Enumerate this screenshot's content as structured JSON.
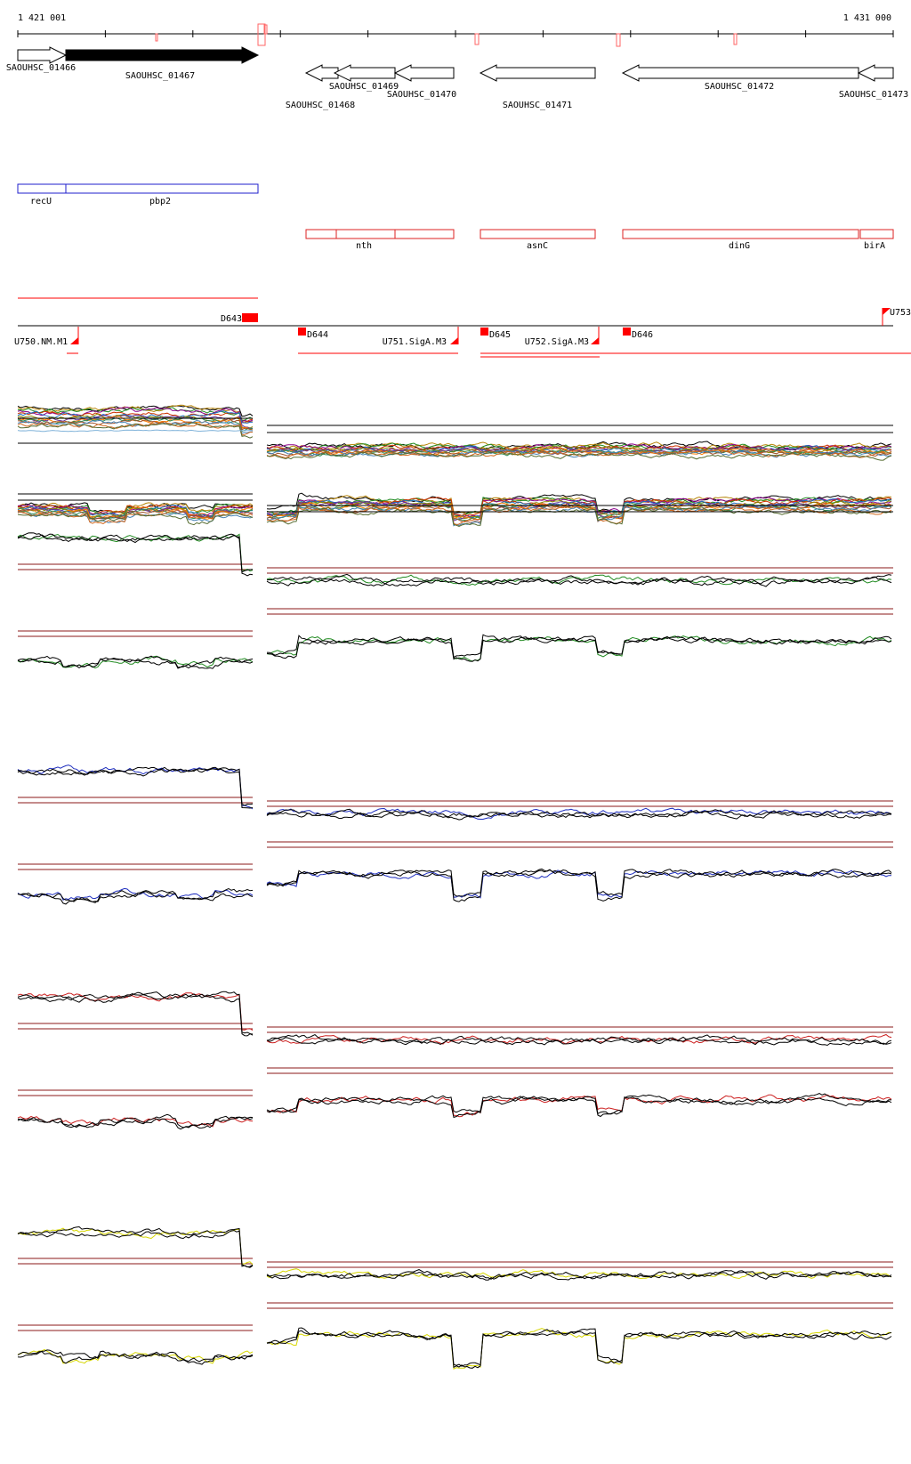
{
  "coordinates": {
    "start_label": "1 421 001",
    "end_label": "1 431 000"
  },
  "genes": [
    {
      "id": "SAOUHSC_01466",
      "strand": "+",
      "filled": false
    },
    {
      "id": "SAOUHSC_01467",
      "strand": "+",
      "filled": true
    },
    {
      "id": "SAOUHSC_01468",
      "strand": "-",
      "filled": false
    },
    {
      "id": "SAOUHSC_01469",
      "strand": "-",
      "filled": false
    },
    {
      "id": "SAOUHSC_01470",
      "strand": "-",
      "filled": false
    },
    {
      "id": "SAOUHSC_01471",
      "strand": "-",
      "filled": false
    },
    {
      "id": "SAOUHSC_01472",
      "strand": "-",
      "filled": false
    },
    {
      "id": "SAOUHSC_01473",
      "strand": "-",
      "filled": false
    }
  ],
  "gene_names_plus": [
    {
      "name": "recU"
    },
    {
      "name": "pbp2"
    }
  ],
  "gene_names_minus": [
    {
      "name": "nth"
    },
    {
      "name": "asnC"
    },
    {
      "name": "dinG"
    },
    {
      "name": "birA"
    }
  ],
  "features": [
    {
      "label": "U750.NM.M1"
    },
    {
      "label": "D644"
    },
    {
      "label": "U751.SigA.M3"
    },
    {
      "label": "D645"
    },
    {
      "label": "U752.SigA.M3"
    },
    {
      "label": "D646"
    },
    {
      "label": "U753"
    },
    {
      "label": "D643"
    }
  ],
  "colors": {
    "gene_outline": "#000000",
    "plus_track": "#1f1fcc",
    "minus_track": "#dd2222",
    "feature": "#ff0000",
    "threshold": "#8b1a1a",
    "panel_green": "#228b22",
    "panel_blue": "#1f2fbf",
    "panel_red": "#cc1f1f",
    "panel_yellow": "#d6d600"
  },
  "expression_panels": [
    {
      "name": "all conditions",
      "color": "multicolor"
    },
    {
      "name": "green panel",
      "color": "#228b22"
    },
    {
      "name": "blue panel",
      "color": "#1f2fbf"
    },
    {
      "name": "red panel",
      "color": "#cc1f1f"
    },
    {
      "name": "yellow panel",
      "color": "#d6d600"
    }
  ]
}
